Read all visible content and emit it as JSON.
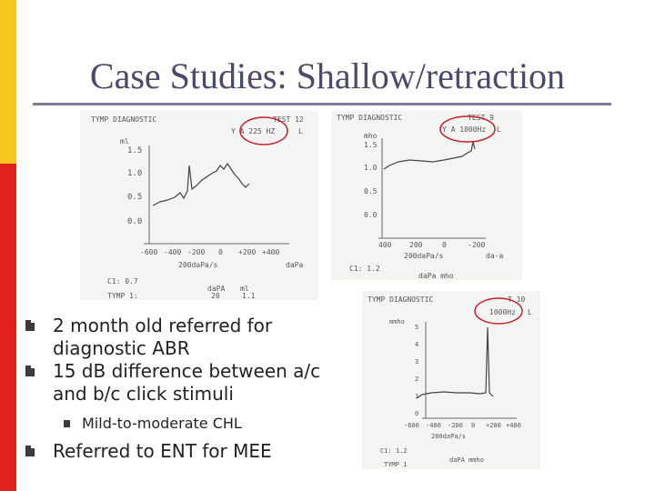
{
  "title": "Case Studies: Shallow/retraction",
  "bullets": [
    "2 month old referred for diagnostic ABR",
    "15 dB difference between a/c and b/c click stimuli"
  ],
  "sub_bullets": [
    "Mild-to-moderate CHL"
  ],
  "bullets_after": [
    "Referred to ENT for MEE"
  ],
  "tymp1": {
    "header": "TYMP DIAGNOSTIC",
    "test": "TEST 12",
    "probe": "Y A  225 HZ",
    "ear": "L",
    "ylabel": "ml",
    "yticks": [
      "1.5",
      "1.0",
      "0.5",
      "0.0"
    ],
    "xticks": [
      "-600",
      "-400",
      "-200",
      "0",
      "+200",
      "+400"
    ],
    "xunit": "200daPa/s",
    "xlabel": "daPa",
    "c1": "C1:  0.7",
    "tymp": "TYMP 1:",
    "dapa_label": "daPA",
    "dapa_value": "20",
    "ml_label": "ml",
    "ml_value": "1.1"
  },
  "tymp2": {
    "header": "TYMP DIAGNOSTIC",
    "test": "TEST 9",
    "probe": "Y A  1000Hz",
    "ear": "L",
    "ylabel": "mho",
    "yticks": [
      "1.5",
      "1.0",
      "0.5",
      "0.0"
    ],
    "xticks": [
      "400",
      "200",
      "0",
      "-200"
    ],
    "xunit": "200daPa/s",
    "xlabel": "da-a",
    "c1": "C1:  1.2",
    "bottom": "daPa  mho"
  },
  "tymp3": {
    "header": "TYMP DIAGNOSTIC",
    "test": "T 10",
    "probe": "1000Hz",
    "ear": "L",
    "ylabel": "mmho",
    "yticks": [
      "5",
      "4",
      "3",
      "2",
      "1",
      "0"
    ],
    "xticks": [
      "-600",
      "-400",
      "-200",
      "0",
      "+200",
      "+400"
    ],
    "xunit": "200daPa/s",
    "c1": "C1:  1.2",
    "tymp": "TYMP 1",
    "bottom": "daPA  mmho"
  },
  "colors": {
    "title": "#4a4a6a",
    "rule": "#7d7d99",
    "stripe_top": "#f7c51e",
    "stripe_bottom": "#e0201d",
    "circle": "#c8202a"
  }
}
